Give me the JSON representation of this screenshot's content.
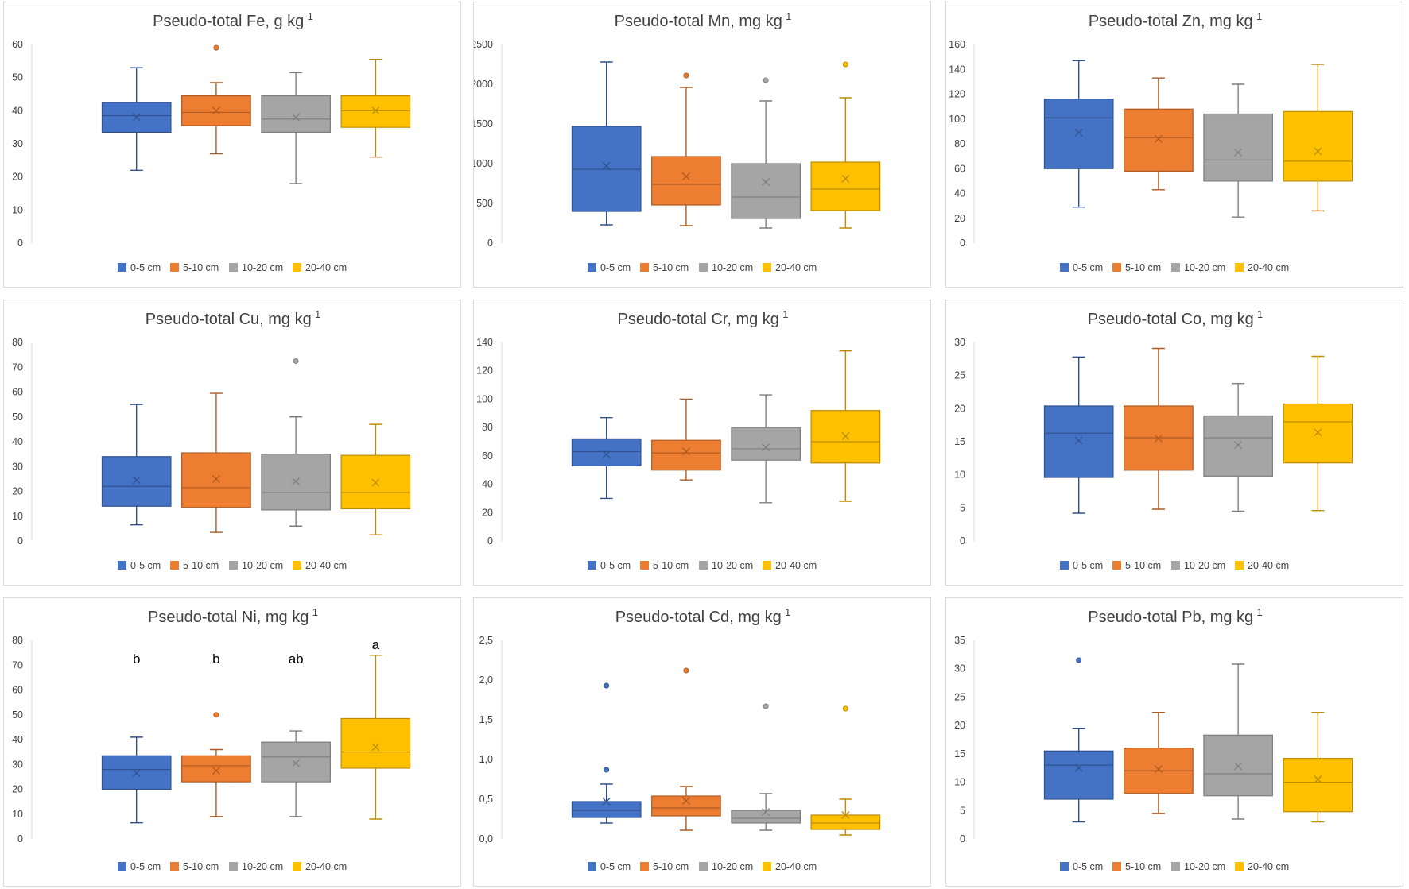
{
  "legend": [
    "0-5 cm",
    "5-10 cm",
    "10-20 cm",
    "20-40 cm"
  ],
  "colors": {
    "fill": [
      "#4472C4",
      "#ED7D31",
      "#A5A5A5",
      "#FFC000"
    ],
    "line": [
      "#2F528F",
      "#AE5A21",
      "#7F7F7F",
      "#BC8C00"
    ]
  },
  "chart_data": [
    {
      "type": "box",
      "element": "Fe",
      "title_main": "Pseudo-total Fe, g kg",
      "title_sup": "-1",
      "yticks": [
        "0",
        "10",
        "20",
        "30",
        "40",
        "50",
        "60"
      ],
      "ylim": [
        0,
        60
      ],
      "series": [
        {
          "name": "0-5 cm",
          "min": 22,
          "q1": 33.5,
          "median": 38.5,
          "q3": 42.5,
          "max": 53,
          "mean": 38,
          "outliers": []
        },
        {
          "name": "5-10 cm",
          "min": 27,
          "q1": 35.5,
          "median": 39.5,
          "q3": 44.5,
          "max": 48.5,
          "mean": 40,
          "outliers": [
            59
          ]
        },
        {
          "name": "10-20 cm",
          "min": 18,
          "q1": 33.5,
          "median": 37.5,
          "q3": 44.5,
          "max": 51.5,
          "mean": 38,
          "outliers": []
        },
        {
          "name": "20-40 cm",
          "min": 26,
          "q1": 35,
          "median": 40,
          "q3": 44.5,
          "max": 55.5,
          "mean": 40,
          "outliers": []
        }
      ],
      "labels": []
    },
    {
      "type": "box",
      "element": "Mn",
      "title_main": "Pseudo-total Mn, mg kg",
      "title_sup": "-1",
      "yticks": [
        "0",
        "500",
        "1000",
        "1500",
        "2000",
        "2500"
      ],
      "ylim": [
        0,
        2500
      ],
      "series": [
        {
          "name": "0-5 cm",
          "min": 230,
          "q1": 400,
          "median": 930,
          "q3": 1470,
          "max": 2280,
          "mean": 970,
          "outliers": []
        },
        {
          "name": "5-10 cm",
          "min": 220,
          "q1": 480,
          "median": 740,
          "q3": 1090,
          "max": 1960,
          "mean": 840,
          "outliers": [
            2110
          ]
        },
        {
          "name": "10-20 cm",
          "min": 190,
          "q1": 310,
          "median": 580,
          "q3": 1000,
          "max": 1790,
          "mean": 770,
          "outliers": [
            2050
          ]
        },
        {
          "name": "20-40 cm",
          "min": 190,
          "q1": 410,
          "median": 680,
          "q3": 1020,
          "max": 1830,
          "mean": 810,
          "outliers": [
            2250
          ]
        }
      ],
      "labels": []
    },
    {
      "type": "box",
      "element": "Zn",
      "title_main": "Pseudo-total Zn, mg kg",
      "title_sup": "-1",
      "yticks": [
        "0",
        "20",
        "40",
        "60",
        "80",
        "100",
        "120",
        "140",
        "160"
      ],
      "ylim": [
        0,
        160
      ],
      "series": [
        {
          "name": "0-5 cm",
          "min": 29,
          "q1": 60,
          "median": 101,
          "q3": 116,
          "max": 147,
          "mean": 89,
          "outliers": []
        },
        {
          "name": "5-10 cm",
          "min": 43,
          "q1": 58,
          "median": 85,
          "q3": 108,
          "max": 133,
          "mean": 84,
          "outliers": []
        },
        {
          "name": "10-20 cm",
          "min": 21,
          "q1": 50,
          "median": 67,
          "q3": 104,
          "max": 128,
          "mean": 73,
          "outliers": []
        },
        {
          "name": "20-40 cm",
          "min": 26,
          "q1": 50,
          "median": 66,
          "q3": 106,
          "max": 144,
          "mean": 74,
          "outliers": []
        }
      ],
      "labels": []
    },
    {
      "type": "box",
      "element": "Cu",
      "title_main": "Pseudo-total Cu, mg kg",
      "title_sup": "-1",
      "yticks": [
        "0",
        "10",
        "20",
        "30",
        "40",
        "50",
        "60",
        "70",
        "80"
      ],
      "ylim": [
        0,
        80
      ],
      "series": [
        {
          "name": "0-5 cm",
          "min": 6.5,
          "q1": 14,
          "median": 22,
          "q3": 34,
          "max": 55,
          "mean": 24.5,
          "outliers": []
        },
        {
          "name": "5-10 cm",
          "min": 3.5,
          "q1": 13.5,
          "median": 21.5,
          "q3": 35.5,
          "max": 59.5,
          "mean": 25,
          "outliers": []
        },
        {
          "name": "10-20 cm",
          "min": 6,
          "q1": 12.5,
          "median": 19.5,
          "q3": 35,
          "max": 50,
          "mean": 24,
          "outliers": [
            72.5
          ]
        },
        {
          "name": "20-40 cm",
          "min": 2.5,
          "q1": 13,
          "median": 19.5,
          "q3": 34.5,
          "max": 47,
          "mean": 23.5,
          "outliers": []
        }
      ],
      "labels": []
    },
    {
      "type": "box",
      "element": "Cr",
      "title_main": "Pseudo-total Cr, mg kg",
      "title_sup": "-1",
      "yticks": [
        "0",
        "20",
        "40",
        "60",
        "80",
        "100",
        "120",
        "140"
      ],
      "ylim": [
        0,
        140
      ],
      "series": [
        {
          "name": "0-5 cm",
          "min": 30,
          "q1": 53,
          "median": 63,
          "q3": 72,
          "max": 87,
          "mean": 61,
          "outliers": []
        },
        {
          "name": "5-10 cm",
          "min": 43,
          "q1": 50,
          "median": 62,
          "q3": 71,
          "max": 100,
          "mean": 63,
          "outliers": []
        },
        {
          "name": "10-20 cm",
          "min": 27,
          "q1": 57,
          "median": 65,
          "q3": 80,
          "max": 103,
          "mean": 66,
          "outliers": []
        },
        {
          "name": "20-40 cm",
          "min": 28,
          "q1": 55,
          "median": 70,
          "q3": 92,
          "max": 134,
          "mean": 74,
          "outliers": []
        }
      ],
      "labels": []
    },
    {
      "type": "box",
      "element": "Co",
      "title_main": "Pseudo-total Co, mg kg",
      "title_sup": "-1",
      "yticks": [
        "0",
        "5",
        "10",
        "15",
        "20",
        "25",
        "30"
      ],
      "ylim": [
        0,
        30
      ],
      "series": [
        {
          "name": "0-5 cm",
          "min": 4.2,
          "q1": 9.6,
          "median": 16.3,
          "q3": 20.4,
          "max": 27.8,
          "mean": 15.2,
          "outliers": []
        },
        {
          "name": "5-10 cm",
          "min": 4.8,
          "q1": 10.7,
          "median": 15.6,
          "q3": 20.4,
          "max": 29.1,
          "mean": 15.5,
          "outliers": []
        },
        {
          "name": "10-20 cm",
          "min": 4.5,
          "q1": 9.8,
          "median": 15.6,
          "q3": 18.9,
          "max": 23.8,
          "mean": 14.5,
          "outliers": []
        },
        {
          "name": "20-40 cm",
          "min": 4.6,
          "q1": 11.8,
          "median": 18.0,
          "q3": 20.7,
          "max": 27.9,
          "mean": 16.4,
          "outliers": []
        }
      ],
      "labels": []
    },
    {
      "type": "box",
      "element": "Ni",
      "title_main": "Pseudo-total Ni, mg kg",
      "title_sup": "-1",
      "yticks": [
        "0",
        "10",
        "20",
        "30",
        "40",
        "50",
        "60",
        "70",
        "80"
      ],
      "ylim": [
        0,
        80
      ],
      "series": [
        {
          "name": "0-5 cm",
          "min": 6.5,
          "q1": 20,
          "median": 28,
          "q3": 33.5,
          "max": 41,
          "mean": 26.5,
          "outliers": []
        },
        {
          "name": "5-10 cm",
          "min": 9,
          "q1": 23,
          "median": 29.5,
          "q3": 33.5,
          "max": 36,
          "mean": 27.5,
          "outliers": [
            50
          ]
        },
        {
          "name": "10-20 cm",
          "min": 9,
          "q1": 23,
          "median": 33,
          "q3": 39,
          "max": 43.5,
          "mean": 30.5,
          "outliers": []
        },
        {
          "name": "20-40 cm",
          "min": 8,
          "q1": 28.5,
          "median": 35,
          "q3": 48.5,
          "max": 74,
          "mean": 37,
          "outliers": []
        }
      ],
      "labels": [
        "b",
        "b",
        "ab",
        "a"
      ]
    },
    {
      "type": "box",
      "element": "Cd",
      "title_main": "Pseudo-total Cd, mg kg",
      "title_sup": "-1",
      "yticks": [
        "0,0",
        "0,5",
        "1,0",
        "1,5",
        "2,0",
        "2,5"
      ],
      "ylim": [
        0,
        2.5
      ],
      "series": [
        {
          "name": "0-5 cm",
          "min": 0.2,
          "q1": 0.27,
          "median": 0.36,
          "q3": 0.47,
          "max": 0.69,
          "mean": 0.47,
          "outliers": [
            0.87,
            1.93
          ]
        },
        {
          "name": "5-10 cm",
          "min": 0.11,
          "q1": 0.29,
          "median": 0.39,
          "q3": 0.54,
          "max": 0.66,
          "mean": 0.48,
          "outliers": [
            2.12
          ]
        },
        {
          "name": "10-20 cm",
          "min": 0.11,
          "q1": 0.2,
          "median": 0.26,
          "q3": 0.36,
          "max": 0.57,
          "mean": 0.34,
          "outliers": [
            1.67
          ]
        },
        {
          "name": "20-40 cm",
          "min": 0.05,
          "q1": 0.12,
          "median": 0.2,
          "q3": 0.3,
          "max": 0.5,
          "mean": 0.3,
          "outliers": [
            1.64
          ]
        }
      ],
      "labels": []
    },
    {
      "type": "box",
      "element": "Pb",
      "title_main": "Pseudo-total Pb, mg kg",
      "title_sup": "-1",
      "yticks": [
        "0",
        "5",
        "10",
        "15",
        "20",
        "25",
        "30",
        "35"
      ],
      "ylim": [
        0,
        35
      ],
      "series": [
        {
          "name": "0-5 cm",
          "min": 3,
          "q1": 7,
          "median": 13,
          "q3": 15.5,
          "max": 19.5,
          "mean": 12.5,
          "outliers": [
            31.5
          ]
        },
        {
          "name": "5-10 cm",
          "min": 4.5,
          "q1": 8,
          "median": 12,
          "q3": 16,
          "max": 22.3,
          "mean": 12.3,
          "outliers": []
        },
        {
          "name": "10-20 cm",
          "min": 3.5,
          "q1": 7.6,
          "median": 11.5,
          "q3": 18.3,
          "max": 30.8,
          "mean": 12.8,
          "outliers": []
        },
        {
          "name": "20-40 cm",
          "min": 3,
          "q1": 4.8,
          "median": 10,
          "q3": 14.2,
          "max": 22.3,
          "mean": 10.5,
          "outliers": []
        }
      ],
      "labels": []
    }
  ]
}
